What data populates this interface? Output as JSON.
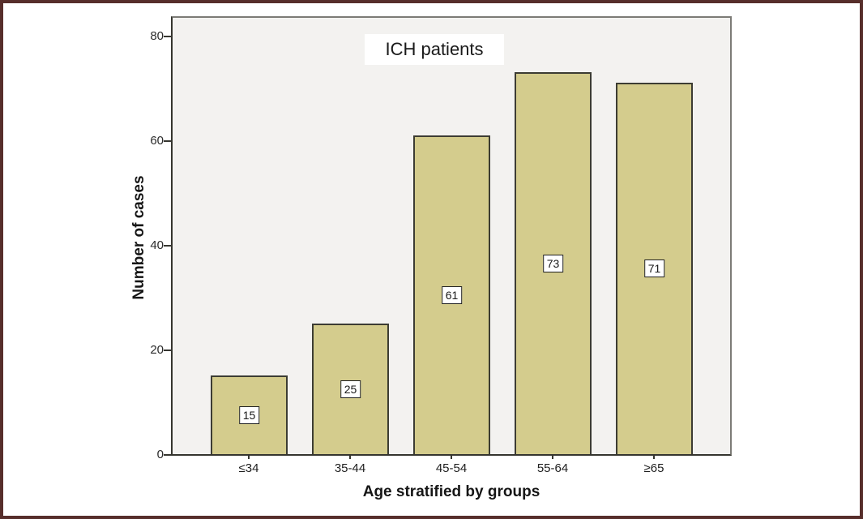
{
  "chart_data": {
    "type": "bar",
    "title": "ICH patients",
    "xlabel": "Age stratified by groups",
    "ylabel": "Number of cases",
    "categories": [
      "≤34",
      "35-44",
      "45-54",
      "55-64",
      "≥65"
    ],
    "values": [
      15,
      25,
      61,
      73,
      71
    ],
    "yticks": [
      0,
      20,
      40,
      60,
      80
    ],
    "ylim": [
      0,
      84
    ],
    "grid": false,
    "legend": "none",
    "value_labels_shown": true,
    "colors": {
      "bar_fill": "#d4cc8d",
      "bar_border": "#3c3c33",
      "plot_background": "#f3f2f0",
      "frame_border": "#7c7b76",
      "axis_line": "#35352f",
      "figure_background": "#ffffff",
      "outer_border": "#572e2b",
      "value_box_background": "#ffffff",
      "value_box_border": "#1f1f1f",
      "text": "#1a1a1a"
    }
  }
}
